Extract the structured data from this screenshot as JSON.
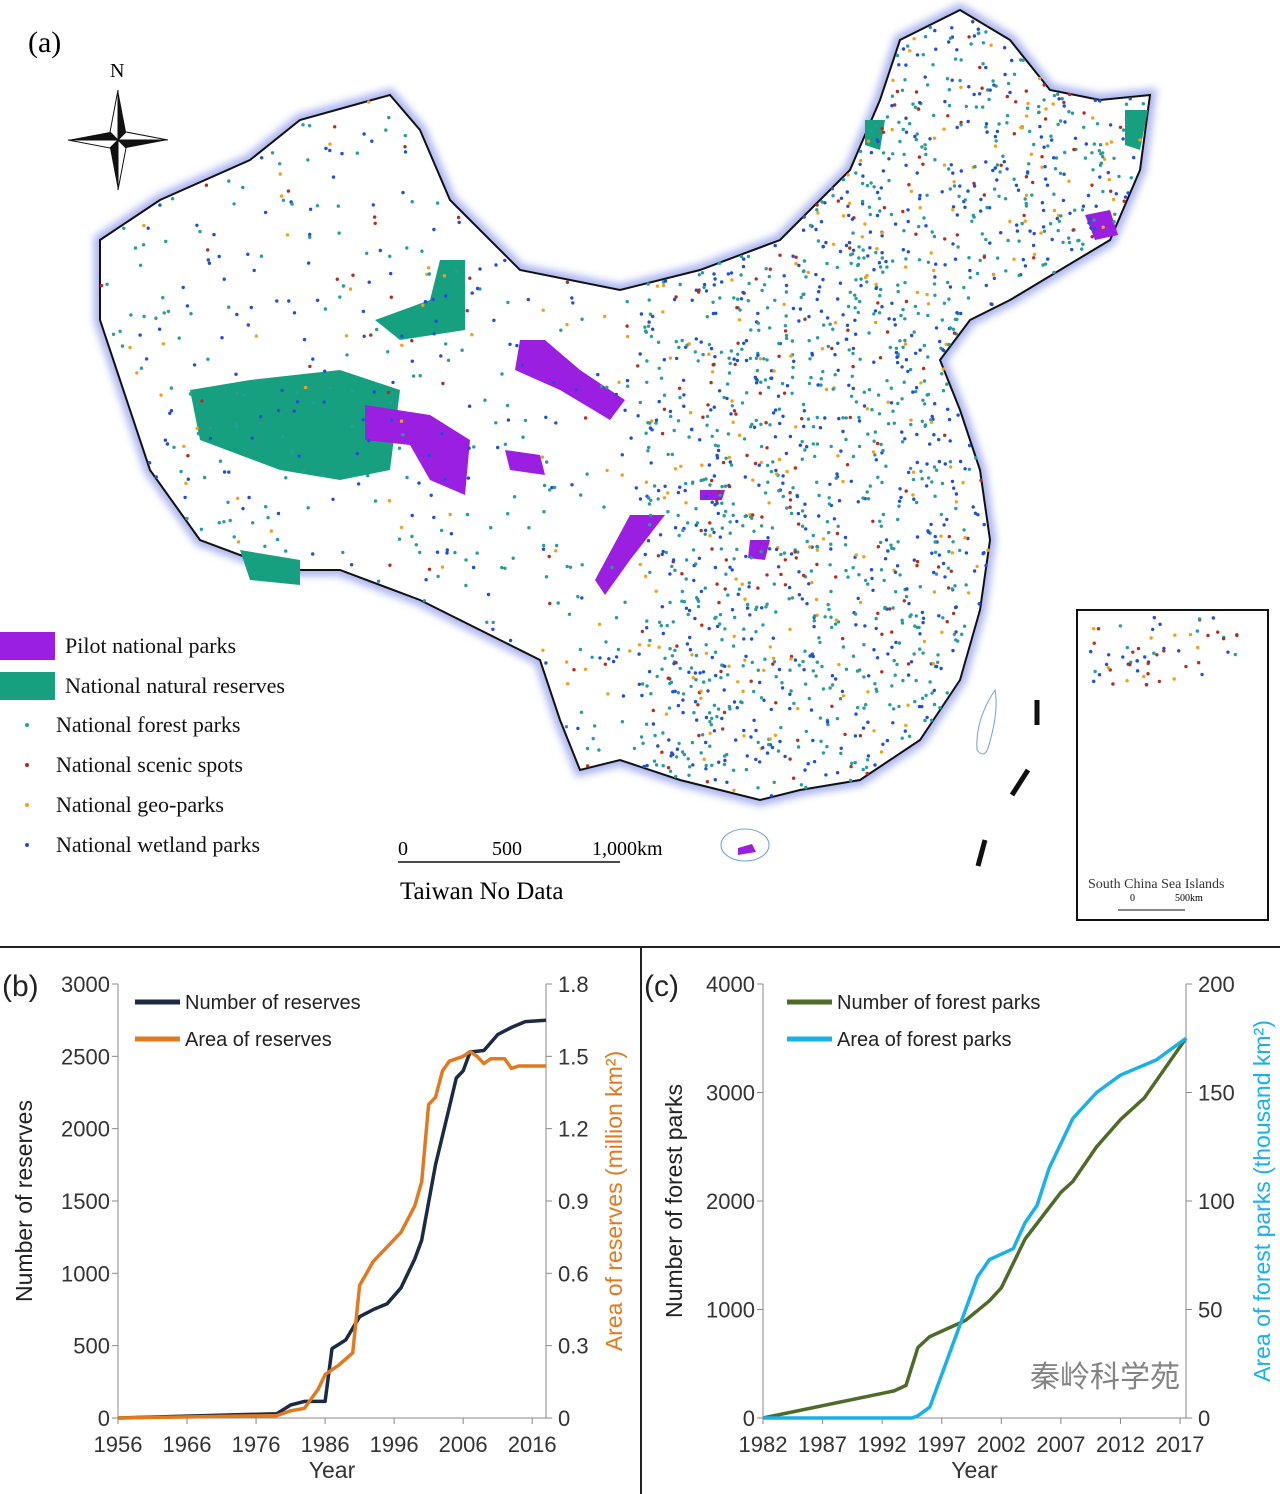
{
  "map": {
    "panel_label": "(a)",
    "north_label": "N",
    "legend": [
      {
        "label": "Pilot national parks",
        "kind": "area",
        "color": "#9b1fe0"
      },
      {
        "label": "National natural reserves",
        "kind": "area",
        "color": "#17a080"
      },
      {
        "label": "National forest parks",
        "kind": "dot",
        "color": "#2a9a9a"
      },
      {
        "label": "National scenic spots",
        "kind": "dot",
        "color": "#b03020"
      },
      {
        "label": "National geo-parks",
        "kind": "dot",
        "color": "#f0a020"
      },
      {
        "label": "National wetland parks",
        "kind": "dot",
        "color": "#2050d0"
      }
    ],
    "scale_ticks": [
      "0",
      "500",
      "1,000km"
    ],
    "note": "Taiwan No Data",
    "inset": {
      "title": "South China Sea Islands",
      "scale_ticks": [
        "0",
        "500km"
      ]
    }
  },
  "chart_data": [
    {
      "type": "line",
      "panel_label": "(b)",
      "xlabel": "Year",
      "ylabel": "Number of reserves",
      "y2label": "Area of reserves (million km²)",
      "xlim": [
        1956,
        2018
      ],
      "xticks": [
        "1956",
        "1966",
        "1976",
        "1986",
        "1996",
        "2006",
        "2016"
      ],
      "ylim": [
        0,
        3000
      ],
      "yticks": [
        "0",
        "500",
        "1000",
        "1500",
        "2000",
        "2500",
        "3000"
      ],
      "y2lim": [
        0,
        1.8
      ],
      "y2ticks": [
        "0",
        "0.3",
        "0.6",
        "0.9",
        "1.2",
        "1.5",
        "1.8"
      ],
      "legend_position": "top-left",
      "grid": false,
      "series": [
        {
          "name": "Number of reserves",
          "axis": "left",
          "color": "#1c2a44",
          "x": [
            1956,
            1979,
            1981,
            1983,
            1986,
            1987,
            1989,
            1991,
            1993,
            1995,
            1997,
            1999,
            2000,
            2002,
            2004,
            2005,
            2006,
            2007,
            2009,
            2011,
            2013,
            2015,
            2018
          ],
          "y": [
            0,
            30,
            90,
            115,
            115,
            480,
            540,
            700,
            750,
            790,
            900,
            1100,
            1230,
            1750,
            2150,
            2350,
            2400,
            2530,
            2540,
            2650,
            2700,
            2740,
            2750
          ]
        },
        {
          "name": "Area of reserves",
          "axis": "right",
          "color": "#e07a20",
          "x": [
            1956,
            1979,
            1981,
            1983,
            1985,
            1986,
            1988,
            1990,
            1991,
            1993,
            1995,
            1997,
            1999,
            2000,
            2001,
            2002,
            2003,
            2004,
            2006,
            2007,
            2008,
            2009,
            2010,
            2012,
            2013,
            2014,
            2018
          ],
          "y": [
            0,
            0.01,
            0.03,
            0.04,
            0.12,
            0.18,
            0.22,
            0.27,
            0.55,
            0.65,
            0.71,
            0.77,
            0.88,
            0.98,
            1.3,
            1.33,
            1.44,
            1.48,
            1.5,
            1.52,
            1.5,
            1.47,
            1.49,
            1.49,
            1.45,
            1.46,
            1.46
          ]
        }
      ]
    },
    {
      "type": "line",
      "panel_label": "(c)",
      "xlabel": "Year",
      "ylabel": "Number of forest parks",
      "y2label": "Area of forest parks (thousand km²)",
      "xlim": [
        1982,
        2017.5
      ],
      "xticks": [
        "1982",
        "1987",
        "1992",
        "1997",
        "2002",
        "2007",
        "2012",
        "2017"
      ],
      "ylim": [
        0,
        4000
      ],
      "yticks": [
        "0",
        "1000",
        "2000",
        "3000",
        "4000"
      ],
      "y2lim": [
        0,
        200
      ],
      "y2ticks": [
        "0",
        "50",
        "100",
        "150",
        "200"
      ],
      "legend_position": "top-left",
      "grid": false,
      "series": [
        {
          "name": "Number of forest parks",
          "axis": "left",
          "color": "#4e6b2a",
          "x": [
            1982,
            1993,
            1994,
            1995,
            1996,
            1999,
            2001,
            2002,
            2004,
            2007,
            2008,
            2010,
            2012,
            2014,
            2017.5
          ],
          "y": [
            0,
            250,
            300,
            650,
            750,
            900,
            1080,
            1200,
            1650,
            2080,
            2180,
            2500,
            2750,
            2950,
            3500
          ]
        },
        {
          "name": "Area of forest parks",
          "axis": "right",
          "color": "#1ab0e8",
          "x": [
            1982,
            1994.5,
            1995,
            1996,
            1999,
            2000,
            2001,
            2003,
            2004,
            2005,
            2006,
            2008,
            2010,
            2012,
            2015,
            2017.5
          ],
          "y": [
            0,
            0,
            1,
            5,
            50,
            65,
            73,
            78,
            90,
            98,
            115,
            138,
            150,
            158,
            165,
            175
          ]
        }
      ]
    }
  ],
  "watermark": "秦岭科学苑"
}
